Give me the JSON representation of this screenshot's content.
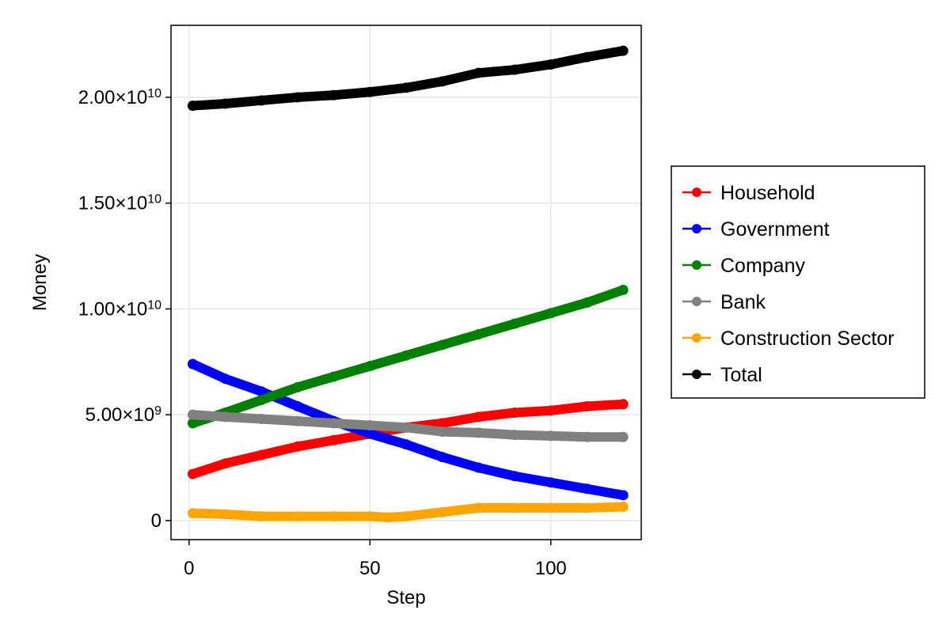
{
  "chart_data": {
    "type": "line",
    "title": "",
    "xlabel": "Step",
    "ylabel": "Money",
    "xlim": [
      -5,
      125
    ],
    "ylim": [
      -900000000,
      23400000000
    ],
    "xticks": [
      {
        "value": 0,
        "label": "0"
      },
      {
        "value": 50,
        "label": "50"
      },
      {
        "value": 100,
        "label": "100"
      }
    ],
    "yticks": [
      {
        "value": 0,
        "label": "0",
        "mantissa": "0",
        "exp": ""
      },
      {
        "value": 5000000000,
        "label": "5.00×10^9",
        "mantissa": "5.00×10",
        "exp": "9"
      },
      {
        "value": 10000000000,
        "label": "1.00×10^10",
        "mantissa": "1.00×10",
        "exp": "10"
      },
      {
        "value": 15000000000,
        "label": "1.50×10^10",
        "mantissa": "1.50×10",
        "exp": "10"
      },
      {
        "value": 20000000000,
        "label": "2.00×10^10",
        "mantissa": "2.00×10",
        "exp": "10"
      }
    ],
    "grid": true,
    "legend_position": "right",
    "series": [
      {
        "name": "Household",
        "color": "#ff0000",
        "x": [
          1,
          10,
          20,
          30,
          40,
          50,
          60,
          70,
          80,
          90,
          100,
          110,
          120
        ],
        "y": [
          2200000000,
          2700000000,
          3100000000,
          3500000000,
          3800000000,
          4100000000,
          4400000000,
          4600000000,
          4900000000,
          5100000000,
          5200000000,
          5400000000,
          5500000000
        ]
      },
      {
        "name": "Government",
        "color": "#0000ff",
        "x": [
          1,
          10,
          20,
          30,
          40,
          50,
          60,
          70,
          80,
          90,
          100,
          110,
          120
        ],
        "y": [
          7400000000,
          6700000000,
          6100000000,
          5400000000,
          4700000000,
          4100000000,
          3600000000,
          3000000000,
          2500000000,
          2100000000,
          1800000000,
          1500000000,
          1200000000
        ]
      },
      {
        "name": "Company",
        "color": "#008000",
        "x": [
          1,
          10,
          20,
          30,
          40,
          50,
          60,
          70,
          80,
          90,
          100,
          110,
          120
        ],
        "y": [
          4600000000,
          5100000000,
          5700000000,
          6300000000,
          6800000000,
          7300000000,
          7800000000,
          8300000000,
          8800000000,
          9300000000,
          9800000000,
          10300000000,
          10900000000
        ]
      },
      {
        "name": "Bank",
        "color": "#808080",
        "x": [
          1,
          10,
          20,
          30,
          40,
          50,
          60,
          70,
          80,
          90,
          100,
          110,
          120
        ],
        "y": [
          5000000000,
          4900000000,
          4800000000,
          4700000000,
          4600000000,
          4500000000,
          4400000000,
          4200000000,
          4150000000,
          4050000000,
          4000000000,
          3950000000,
          3950000000
        ]
      },
      {
        "name": "Construction Sector",
        "color": "#ffa500",
        "x": [
          1,
          10,
          20,
          30,
          40,
          50,
          55,
          60,
          70,
          80,
          90,
          100,
          110,
          120
        ],
        "y": [
          350000000,
          300000000,
          200000000,
          200000000,
          200000000,
          200000000,
          150000000,
          200000000,
          400000000,
          600000000,
          600000000,
          600000000,
          600000000,
          650000000
        ]
      },
      {
        "name": "Total",
        "color": "#000000",
        "x": [
          1,
          10,
          20,
          30,
          40,
          50,
          60,
          70,
          80,
          90,
          100,
          110,
          120
        ],
        "y": [
          19600000000,
          19700000000,
          19850000000,
          20000000000,
          20100000000,
          20250000000,
          20450000000,
          20750000000,
          21150000000,
          21300000000,
          21550000000,
          21900000000,
          22200000000
        ]
      }
    ]
  }
}
